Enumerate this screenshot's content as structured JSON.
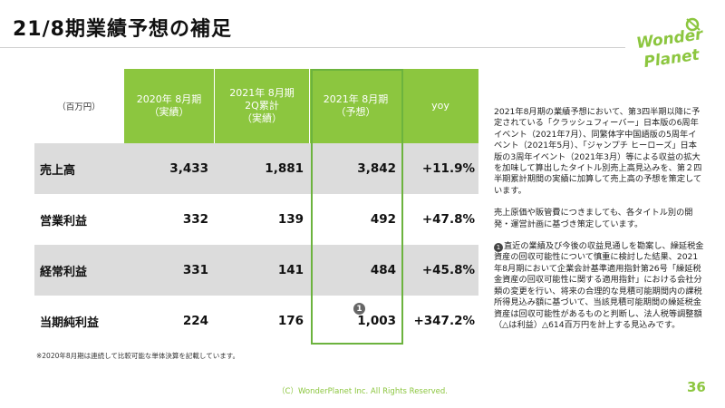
{
  "title": "21/8期業績予想の補足",
  "logo": {
    "line1": "Wonder",
    "line2": "Planet"
  },
  "table": {
    "unit_label": "（百万円）",
    "headers": [
      [
        "2020年 8月期",
        "（実績）"
      ],
      [
        "2021年 8月期",
        "2Q累計",
        "（実績）"
      ],
      [
        "2021年 8月期",
        "（予想）"
      ],
      [
        "yoy"
      ]
    ],
    "rows": [
      {
        "label": "売上高",
        "values": [
          "3,433",
          "1,881",
          "3,842",
          "+11.9%"
        ]
      },
      {
        "label": "営業利益",
        "values": [
          "332",
          "139",
          "492",
          "+47.8%"
        ]
      },
      {
        "label": "経常利益",
        "values": [
          "331",
          "141",
          "484",
          "+45.8%"
        ]
      },
      {
        "label": "当期純利益",
        "values": [
          "224",
          "176",
          "1,003",
          "+347.2%"
        ]
      }
    ],
    "badge": "1"
  },
  "footnote": "※2020年8月期は連続して比較可能な単体決算を記載しています。",
  "side": {
    "p1": "2021年8月期の業績予想において、第3四半期以降に予定されている「クラッシュフィーバー」日本版の6周年イベント（2021年7月）、同繁体字中国語版の5周年イベント（2021年5月）、「ジャンプチ ヒーローズ」日本版の3周年イベント（2021年3月）等による収益の拡大を加味して算出したタイトル別売上高見込みを、第２四半期累計期間の実績に加算して売上高の予想を策定しています。",
    "p2": "売上原価や販管費につきましても、各タイトル別の開発・運営計画に基づき策定しています。",
    "p3_mark": "1",
    "p3": "直近の業績及び今後の収益見通しを勘案し、繰延税金資産の回収可能性について慎重に検討した結果、2021年8月期において企業会計基準適用指針第26号「繰延税金資産の回収可能性に関する適用指針」における会社分類の変更を行い、将来の合理的な見積可能期間内の課税所得見込み額に基づいて、当該見積可能期間の繰延税金資産は回収可能性があるものと判断し、法人税等調整額（△は利益）△614百万円を計上する見込みです。"
  },
  "copyright": "（C）WonderPlanet Inc.  All Rights Reserved.",
  "page_number": "36",
  "colors": {
    "accent": "#8cc63f",
    "highlight_border": "#6cb33e",
    "row_alt": "#dcdcdc"
  }
}
